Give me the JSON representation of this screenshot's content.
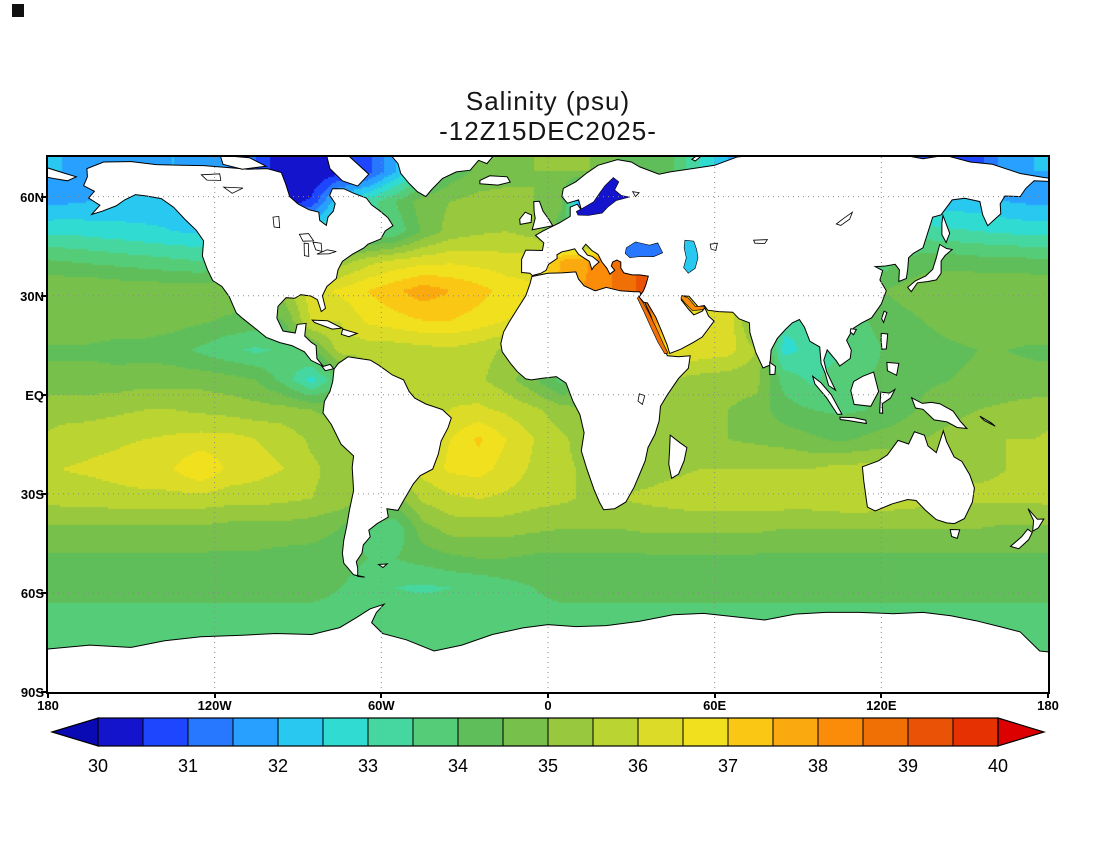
{
  "title": {
    "line1": "Salinity (psu)",
    "line2": "-12Z15DEC2025-"
  },
  "axes": {
    "lat_ticks": [
      {
        "label": "60N",
        "lat": 60
      },
      {
        "label": "30N",
        "lat": 30
      },
      {
        "label": "EQ",
        "lat": 0
      },
      {
        "label": "30S",
        "lat": -30
      },
      {
        "label": "60S",
        "lat": -60
      },
      {
        "label": "90S",
        "lat": -90
      }
    ],
    "lon_ticks": [
      {
        "label": "180",
        "lon": -180
      },
      {
        "label": "120W",
        "lon": -120
      },
      {
        "label": "60W",
        "lon": -60
      },
      {
        "label": "0",
        "lon": 0
      },
      {
        "label": "60E",
        "lon": 60
      },
      {
        "label": "120E",
        "lon": 120
      },
      {
        "label": "180",
        "lon": 180
      }
    ]
  },
  "colorbar": {
    "min": 30,
    "max": 40,
    "interval": 0.5,
    "under_color": "#0a0ab4",
    "over_color": "#dc0000",
    "colors": [
      "#1414cd",
      "#1e46ff",
      "#2878ff",
      "#28a0ff",
      "#28c8f0",
      "#30dcd2",
      "#46d7a0",
      "#55cd78",
      "#5fbe5a",
      "#76c04b",
      "#98c83e",
      "#bad432",
      "#dcdc28",
      "#f0e01e",
      "#fac814",
      "#faaa0f",
      "#fa8c0a",
      "#f07005",
      "#ea5205",
      "#e63202"
    ],
    "labels": [
      "30",
      "31",
      "32",
      "33",
      "34",
      "35",
      "36",
      "37",
      "38",
      "39",
      "40"
    ]
  },
  "chart_data": {
    "type": "heatmap",
    "variable": "Salinity",
    "units": "psu",
    "valid_time": "12Z15DEC2025",
    "lon_range": [
      -180,
      180
    ],
    "lat_range": [
      -90,
      72
    ],
    "lon_start": -175,
    "lon_step": 10,
    "lat_start": 67.5,
    "lat_step": -9,
    "values": [
      [
        32.0,
        31.8,
        31.8,
        31.8,
        32.0,
        31.8,
        31.5,
        31.0,
        30.0,
        30.0,
        30.3,
        30.8,
        32.0,
        33.2,
        34.2,
        34.6,
        34.8,
        35.0,
        35.0,
        35.0,
        34.5,
        34.2,
        34.0,
        33.0,
        32.0,
        31.5,
        31.0,
        30.5,
        30.5,
        30.5,
        30.8,
        30.8,
        30.8,
        30.8,
        31.8,
        32.0
      ],
      [
        31.9,
        32.0,
        32.1,
        32.2,
        32.3,
        32.4,
        32.4,
        31.8,
        30.2,
        30.6,
        32.6,
        33.2,
        34.0,
        34.8,
        35.0,
        35.2,
        35.2,
        35.0,
        34.6,
        30.0,
        31.0,
        33.0,
        33.5,
        33.5,
        33.5,
        33.5,
        33.5,
        33.5,
        33.5,
        33.0,
        32.6,
        32.3,
        32.2,
        32.2,
        32.0,
        31.9
      ],
      [
        32.9,
        32.8,
        32.7,
        32.6,
        32.5,
        32.4,
        32.6,
        32.8,
        33.0,
        33.0,
        33.1,
        33.3,
        33.6,
        34.6,
        35.2,
        35.4,
        35.5,
        35.3,
        34.2,
        33.2,
        33.0,
        33.0,
        32.5,
        33.0,
        33.0,
        33.0,
        33.0,
        33.0,
        33.0,
        33.0,
        33.0,
        33.2,
        33.1,
        33.0,
        32.9,
        32.8
      ],
      [
        34.0,
        33.9,
        33.8,
        33.7,
        33.6,
        33.5,
        33.7,
        34.0,
        34.4,
        34.8,
        35.2,
        35.8,
        36.1,
        36.3,
        36.4,
        36.3,
        36.2,
        36.2,
        37.6,
        38.0,
        38.6,
        39.2,
        32.5,
        34.0,
        34.0,
        34.0,
        34.0,
        34.0,
        33.5,
        33.2,
        34.0,
        34.3,
        34.3,
        34.2,
        34.2,
        34.1
      ],
      [
        35.0,
        35.0,
        34.9,
        34.9,
        34.8,
        34.8,
        34.9,
        35.0,
        35.3,
        36.3,
        36.6,
        37.0,
        37.4,
        37.8,
        37.5,
        37.2,
        36.8,
        36.6,
        37.7,
        38.1,
        38.6,
        39.2,
        38.0,
        36.0,
        36.0,
        36.0,
        35.0,
        34.5,
        34.3,
        34.4,
        34.6,
        34.8,
        34.9,
        35.0,
        35.0,
        35.0
      ],
      [
        34.9,
        34.9,
        34.8,
        34.8,
        34.7,
        34.6,
        34.4,
        34.3,
        34.5,
        36.1,
        36.0,
        36.6,
        36.8,
        37.0,
        37.0,
        36.8,
        36.5,
        36.3,
        36.0,
        36.0,
        37.0,
        38.6,
        37.5,
        36.4,
        36.4,
        34.5,
        33.2,
        33.0,
        33.8,
        34.0,
        34.3,
        34.5,
        34.7,
        34.8,
        34.9,
        34.9
      ],
      [
        34.4,
        34.4,
        34.3,
        34.3,
        34.2,
        33.9,
        33.6,
        33.4,
        33.6,
        34.3,
        35.7,
        35.7,
        35.7,
        35.8,
        35.9,
        35.7,
        35.4,
        35.2,
        35.0,
        35.5,
        36.5,
        37.2,
        36.6,
        36.3,
        36.2,
        35.5,
        32.8,
        33.2,
        33.4,
        33.8,
        34.2,
        34.3,
        34.4,
        34.5,
        34.5,
        34.4
      ],
      [
        34.7,
        34.7,
        34.7,
        34.8,
        34.8,
        34.8,
        34.7,
        34.5,
        33.8,
        32.8,
        34.0,
        35.2,
        35.6,
        35.8,
        35.9,
        35.6,
        35.2,
        34.6,
        33.8,
        34.5,
        35.0,
        35.3,
        35.4,
        35.3,
        35.2,
        35.2,
        33.8,
        33.4,
        33.8,
        34.0,
        34.2,
        34.4,
        34.5,
        34.6,
        34.7,
        34.7
      ],
      [
        35.3,
        35.3,
        35.4,
        35.5,
        35.5,
        35.4,
        35.3,
        35.2,
        35.2,
        35.0,
        34.8,
        35.2,
        35.5,
        35.8,
        36.0,
        36.1,
        35.9,
        35.6,
        35.2,
        35.0,
        35.0,
        35.2,
        35.2,
        35.1,
        35.0,
        34.8,
        34.2,
        34.0,
        33.9,
        34.0,
        34.2,
        34.6,
        34.8,
        35.0,
        35.1,
        35.2
      ],
      [
        35.7,
        35.8,
        35.9,
        36.0,
        36.1,
        36.2,
        36.2,
        36.0,
        35.8,
        35.4,
        35.2,
        35.4,
        36.0,
        36.2,
        36.5,
        37.1,
        36.5,
        36.0,
        35.6,
        35.2,
        35.0,
        35.1,
        35.2,
        35.1,
        35.0,
        34.9,
        34.8,
        34.6,
        34.4,
        34.6,
        34.8,
        35.0,
        35.2,
        35.4,
        35.5,
        35.5
      ],
      [
        36.0,
        36.1,
        36.2,
        36.4,
        36.5,
        37.0,
        36.4,
        36.2,
        36.0,
        35.6,
        35.3,
        35.2,
        35.8,
        36.2,
        36.6,
        36.7,
        36.3,
        35.9,
        35.6,
        35.4,
        35.3,
        35.3,
        35.4,
        35.5,
        35.5,
        35.5,
        35.5,
        35.5,
        35.7,
        35.7,
        35.5,
        35.4,
        35.4,
        35.4,
        35.5,
        35.5
      ],
      [
        35.7,
        35.7,
        35.8,
        35.8,
        35.8,
        35.8,
        35.7,
        35.7,
        35.6,
        35.5,
        35.3,
        35.0,
        34.8,
        35.6,
        35.9,
        36.0,
        35.9,
        35.7,
        35.6,
        35.4,
        35.5,
        35.6,
        35.7,
        35.8,
        35.8,
        35.8,
        35.8,
        35.8,
        35.9,
        35.9,
        35.8,
        35.7,
        35.6,
        35.6,
        35.6,
        35.6
      ],
      [
        34.9,
        34.9,
        34.9,
        34.9,
        34.9,
        34.9,
        34.8,
        34.8,
        34.8,
        34.7,
        34.5,
        33.8,
        33.6,
        34.8,
        35.2,
        35.2,
        35.2,
        35.1,
        35.0,
        35.0,
        35.0,
        35.1,
        35.1,
        35.1,
        35.1,
        35.1,
        35.0,
        35.0,
        35.0,
        35.0,
        35.0,
        35.0,
        35.0,
        35.0,
        34.9,
        34.9
      ],
      [
        34.4,
        34.4,
        34.4,
        34.4,
        34.4,
        34.4,
        34.4,
        34.4,
        34.3,
        34.3,
        34.2,
        34.0,
        34.0,
        34.2,
        34.4,
        34.5,
        34.5,
        34.4,
        34.4,
        34.4,
        34.4,
        34.4,
        34.4,
        34.4,
        34.4,
        34.4,
        34.4,
        34.4,
        34.4,
        34.4,
        34.4,
        34.4,
        34.4,
        34.4,
        34.4,
        34.4
      ],
      [
        34.1,
        34.1,
        34.1,
        34.1,
        34.1,
        34.1,
        34.1,
        34.1,
        34.1,
        34.1,
        34.0,
        33.8,
        33.5,
        33.4,
        33.5,
        33.6,
        33.8,
        34.0,
        34.1,
        34.1,
        34.1,
        34.1,
        34.1,
        34.1,
        34.1,
        34.1,
        34.1,
        34.1,
        34.1,
        34.1,
        34.1,
        34.1,
        34.1,
        34.1,
        34.1,
        34.1
      ],
      [
        33.9,
        33.9,
        33.9,
        33.9,
        33.9,
        33.9,
        33.9,
        33.9,
        33.9,
        33.9,
        33.9,
        33.9,
        33.9,
        33.9,
        33.9,
        33.9,
        33.9,
        33.9,
        33.9,
        33.9,
        33.9,
        33.9,
        33.9,
        33.9,
        33.9,
        33.9,
        33.9,
        33.9,
        33.9,
        33.9,
        33.9,
        33.9,
        33.9,
        33.9,
        33.9,
        33.9
      ],
      [
        33.8,
        33.8,
        33.8,
        33.8,
        33.8,
        33.8,
        33.8,
        33.8,
        33.8,
        33.8,
        33.8,
        33.8,
        33.8,
        33.8,
        33.8,
        33.8,
        33.8,
        33.8,
        33.8,
        33.8,
        33.8,
        33.8,
        33.8,
        33.8,
        33.8,
        33.8,
        33.8,
        33.8,
        33.8,
        33.8,
        33.8,
        33.8,
        33.8,
        33.8,
        33.8,
        33.8
      ],
      [
        33.8,
        33.8,
        33.8,
        33.8,
        33.8,
        33.8,
        33.8,
        33.8,
        33.8,
        33.8,
        33.8,
        33.8,
        33.8,
        33.8,
        33.8,
        33.8,
        33.8,
        33.8,
        33.8,
        33.8,
        33.8,
        33.8,
        33.8,
        33.8,
        33.8,
        33.8,
        33.8,
        33.8,
        33.8,
        33.8,
        33.8,
        33.8,
        33.8,
        33.8,
        33.8,
        33.8
      ]
    ],
    "seas": {
      "baltic_sea": 30.2,
      "black_sea": 31.2,
      "caspian_sea": 32.3,
      "red_sea": 38.8,
      "persian_gulf": 38.2
    }
  }
}
